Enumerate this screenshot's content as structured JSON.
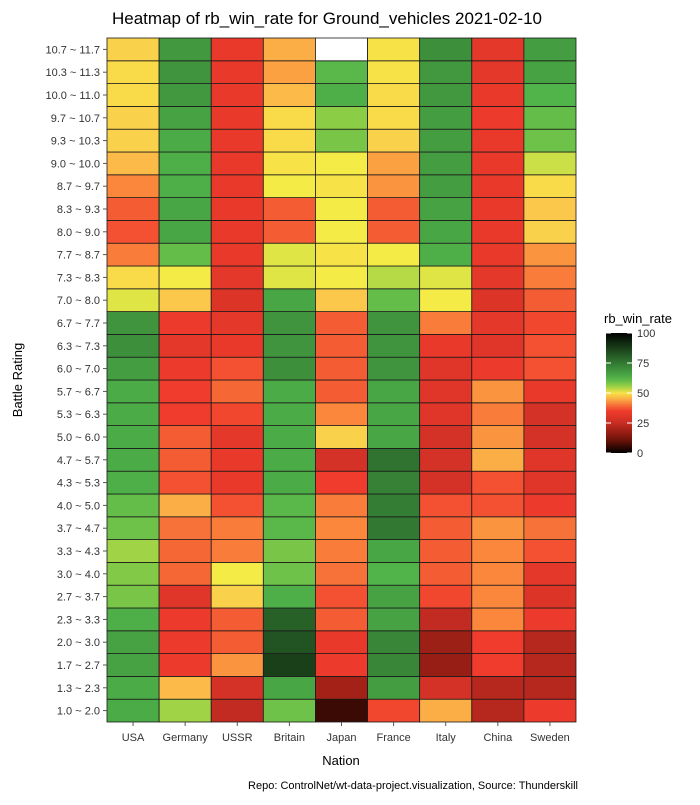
{
  "chart_data": {
    "type": "heatmap",
    "title": "Heatmap of rb_win_rate for Ground_vehicles 2021-02-10",
    "xlabel": "Nation",
    "ylabel": "Battle Rating",
    "caption": "Repo: ControlNet/wt-data-project.visualization, Source: Thunderskill",
    "x": [
      "USA",
      "Germany",
      "USSR",
      "Britain",
      "Japan",
      "France",
      "Italy",
      "China",
      "Sweden"
    ],
    "y": [
      "1.0 ~ 2.0",
      "1.3 ~ 2.3",
      "1.7 ~ 2.7",
      "2.0 ~ 3.0",
      "2.3 ~ 3.3",
      "2.7 ~ 3.7",
      "3.0 ~ 4.0",
      "3.3 ~ 4.3",
      "3.7 ~ 4.7",
      "4.0 ~ 5.0",
      "4.3 ~ 5.3",
      "4.7 ~ 5.7",
      "5.0 ~ 6.0",
      "5.3 ~ 6.3",
      "5.7 ~ 6.7",
      "6.0 ~ 7.0",
      "6.3 ~ 7.3",
      "6.7 ~ 7.7",
      "7.0 ~ 8.0",
      "7.3 ~ 8.3",
      "7.7 ~ 8.7",
      "8.0 ~ 9.0",
      "8.3 ~ 9.3",
      "8.7 ~ 9.7",
      "9.0 ~ 10.0",
      "9.3 ~ 10.3",
      "9.7 ~ 10.7",
      "10.0 ~ 11.0",
      "10.3 ~ 11.3",
      "10.7 ~ 11.7"
    ],
    "values": [
      [
        64,
        55,
        24,
        59,
        6,
        36,
        45,
        22,
        34
      ],
      [
        64,
        46,
        28,
        65,
        19,
        67,
        28,
        22,
        22
      ],
      [
        66,
        34,
        43,
        87,
        34,
        72,
        17,
        35,
        22
      ],
      [
        66,
        34,
        38,
        83,
        33,
        72,
        18,
        35,
        22
      ],
      [
        63,
        34,
        38,
        80,
        38,
        66,
        24,
        42,
        34
      ],
      [
        58,
        31,
        48,
        63,
        37,
        66,
        36,
        42,
        30
      ],
      [
        57,
        39,
        51,
        59,
        40,
        62,
        38,
        42,
        32
      ],
      [
        55,
        39,
        41,
        58,
        41,
        65,
        38,
        42,
        37
      ],
      [
        59,
        40,
        41,
        61,
        42,
        75,
        38,
        43,
        40
      ],
      [
        60,
        45,
        37,
        61,
        41,
        74,
        37,
        37,
        34
      ],
      [
        63,
        37,
        33,
        64,
        35,
        73,
        28,
        37,
        31
      ],
      [
        64,
        38,
        33,
        64,
        28,
        76,
        28,
        45,
        31
      ],
      [
        64,
        38,
        32,
        64,
        48,
        65,
        28,
        43,
        28
      ],
      [
        64,
        35,
        36,
        64,
        42,
        65,
        31,
        41,
        28
      ],
      [
        64,
        35,
        39,
        64,
        38,
        65,
        31,
        43,
        33
      ],
      [
        67,
        34,
        37,
        70,
        38,
        69,
        31,
        34,
        37
      ],
      [
        70,
        32,
        33,
        69,
        38,
        69,
        33,
        31,
        37
      ],
      [
        69,
        34,
        32,
        69,
        38,
        69,
        41,
        32,
        36
      ],
      [
        52,
        47,
        30,
        65,
        47,
        60,
        51,
        30,
        38
      ],
      [
        49,
        51,
        32,
        52,
        51,
        54,
        52,
        32,
        41
      ],
      [
        41,
        60,
        33,
        52,
        50,
        51,
        63,
        33,
        43
      ],
      [
        37,
        65,
        33,
        38,
        51,
        38,
        65,
        33,
        48
      ],
      [
        38,
        65,
        33,
        38,
        51,
        38,
        66,
        33,
        47
      ],
      [
        42,
        63,
        33,
        51,
        50,
        43,
        67,
        33,
        49
      ],
      [
        46,
        63,
        33,
        50,
        51,
        44,
        67,
        33,
        53
      ],
      [
        48,
        64,
        33,
        49,
        58,
        48,
        67,
        33,
        59
      ],
      [
        48,
        66,
        33,
        49,
        56,
        49,
        67,
        34,
        60
      ],
      [
        49,
        68,
        33,
        46,
        63,
        49,
        68,
        33,
        62
      ],
      [
        49,
        69,
        33,
        44,
        61,
        50,
        68,
        32,
        66
      ],
      [
        48,
        68,
        33,
        45,
        null,
        50,
        70,
        32,
        67
      ]
    ],
    "colorbar": {
      "title": "rb_win_rate",
      "min": 0,
      "max": 100,
      "ticks": [
        0,
        25,
        50,
        75,
        100
      ]
    },
    "grid": false,
    "legend_position": "right",
    "missing_color": "#ffffff"
  }
}
